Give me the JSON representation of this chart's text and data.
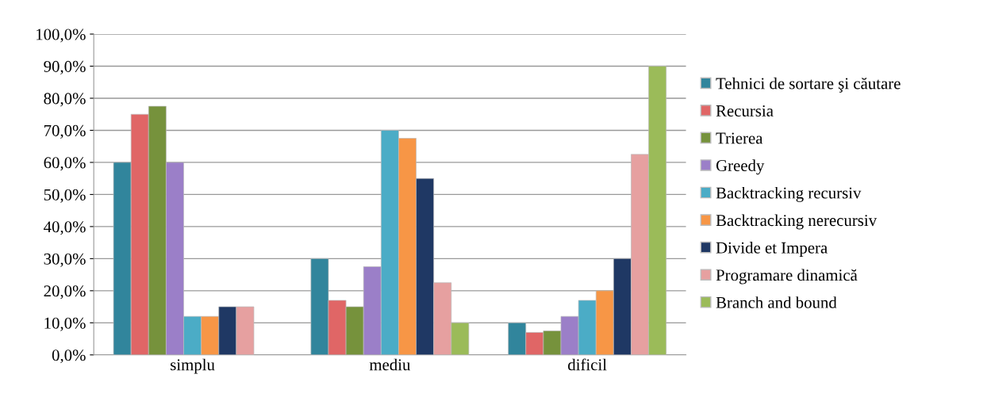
{
  "chart_data": {
    "type": "bar",
    "categories": [
      "simplu",
      "mediu",
      "dificil"
    ],
    "series": [
      {
        "name": "Tehnici de sortare şi căutare",
        "color": "#31859c",
        "values": [
          60,
          30,
          10
        ]
      },
      {
        "name": "Recursia",
        "color": "#e06666",
        "values": [
          75,
          17,
          7
        ]
      },
      {
        "name": "Trierea",
        "color": "#76923c",
        "values": [
          77.5,
          15,
          7.5
        ]
      },
      {
        "name": "Greedy",
        "color": "#9b7fc8",
        "values": [
          60,
          27.5,
          12
        ]
      },
      {
        "name": "Backtracking recursiv",
        "color": "#4bacc6",
        "values": [
          12,
          70,
          17
        ]
      },
      {
        "name": "Backtracking nerecursiv",
        "color": "#f79646",
        "values": [
          12,
          67.5,
          20
        ]
      },
      {
        "name": "Divide et Impera",
        "color": "#1f3864",
        "values": [
          15,
          55,
          30
        ]
      },
      {
        "name": "Programare dinamică",
        "color": "#e6a0a0",
        "values": [
          15,
          22.5,
          62.5
        ]
      },
      {
        "name": "Branch and bound",
        "color": "#9bbb59",
        "values": [
          null,
          10,
          90
        ]
      }
    ],
    "ylim": [
      0,
      100
    ],
    "yticks": [
      {
        "value": 0,
        "label": "0,0%"
      },
      {
        "value": 10,
        "label": "10,0%"
      },
      {
        "value": 20,
        "label": "20,0%"
      },
      {
        "value": 30,
        "label": "30,0%"
      },
      {
        "value": 40,
        "label": "40,0%"
      },
      {
        "value": 50,
        "label": "50,0%"
      },
      {
        "value": 60,
        "label": "60,0%"
      },
      {
        "value": 70,
        "label": "70,0%"
      },
      {
        "value": 80,
        "label": "80,0%"
      },
      {
        "value": 90,
        "label": "90,0%"
      },
      {
        "value": 100,
        "label": "100,0%"
      }
    ],
    "grid": "y",
    "legend": "right"
  }
}
